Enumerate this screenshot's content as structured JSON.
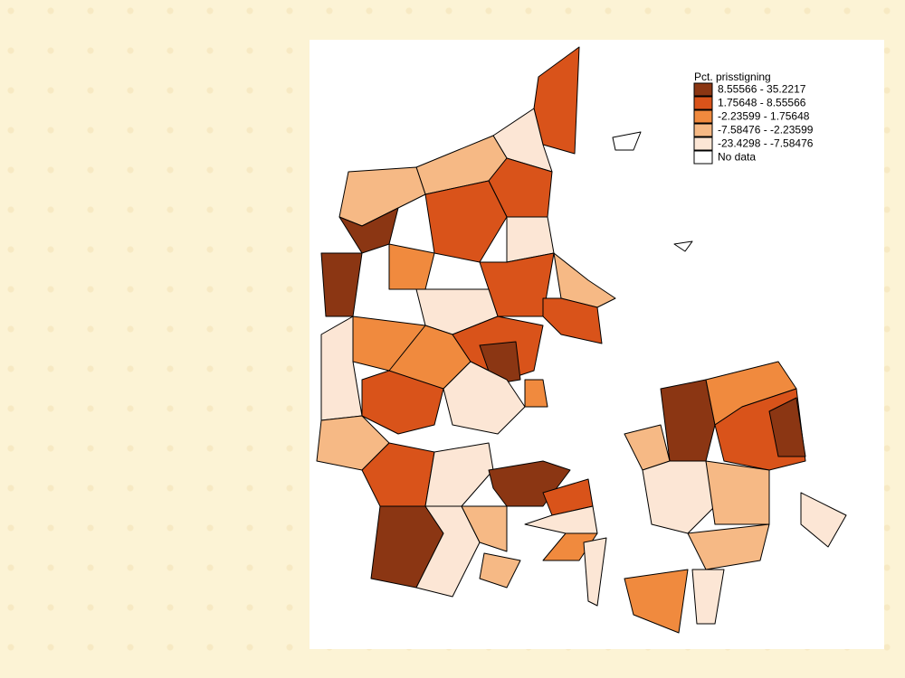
{
  "legend": {
    "title": "Pct. prisstigning",
    "entries": [
      {
        "label": "8.55566 - 35.2217",
        "color": "#8b3613"
      },
      {
        "label": "1.75648 - 8.55566",
        "color": "#d9531a"
      },
      {
        "label": "-2.23599 - 1.75648",
        "color": "#f08a3e"
      },
      {
        "label": "-7.58476 - -2.23599",
        "color": "#f6b985"
      },
      {
        "label": "-23.4298 - -7.58476",
        "color": "#fce6d5"
      },
      {
        "label": "No data",
        "color": "#ffffff"
      }
    ]
  }
}
